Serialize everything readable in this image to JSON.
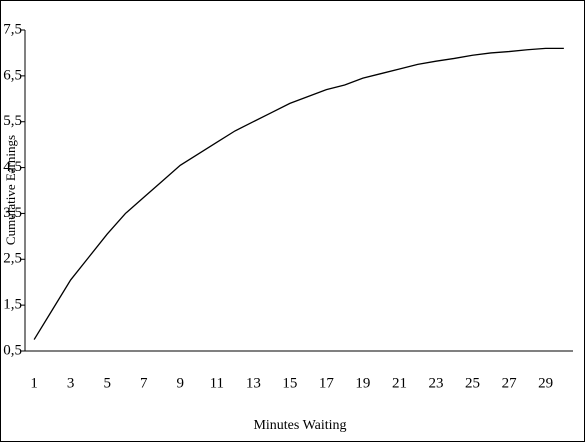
{
  "chart_data": {
    "type": "line",
    "x_label": "Minutes Waiting",
    "y_label": "Cumulative Earnings",
    "categories": [
      1,
      null,
      3,
      null,
      5,
      null,
      7,
      null,
      9,
      null,
      11,
      null,
      13,
      null,
      15,
      null,
      17,
      null,
      19,
      null,
      21,
      null,
      23,
      null,
      25,
      null,
      27,
      null,
      29,
      null
    ],
    "values": [
      0.75,
      1.4,
      2.05,
      2.55,
      3.05,
      3.5,
      3.85,
      4.2,
      4.55,
      4.8,
      5.05,
      5.3,
      5.5,
      5.7,
      5.9,
      6.05,
      6.2,
      6.3,
      6.45,
      6.55,
      6.65,
      6.75,
      6.82,
      6.88,
      6.95,
      7.0,
      7.03,
      7.07,
      7.1,
      7.1
    ],
    "color": "#000000",
    "ylim": [
      0.5,
      7.5
    ],
    "yticks": [
      {
        "value": 0.5,
        "label": "0,5"
      },
      {
        "value": 1.5,
        "label": "1,5"
      },
      {
        "value": 2.5,
        "label": "2,5"
      },
      {
        "value": 3.5,
        "label": "3,5"
      },
      {
        "value": 4.5,
        "label": "4,5"
      },
      {
        "value": 5.5,
        "label": "5,5"
      },
      {
        "value": 6.5,
        "label": "6,5"
      },
      {
        "value": 7.5,
        "label": "7,5"
      }
    ],
    "grid": false
  }
}
